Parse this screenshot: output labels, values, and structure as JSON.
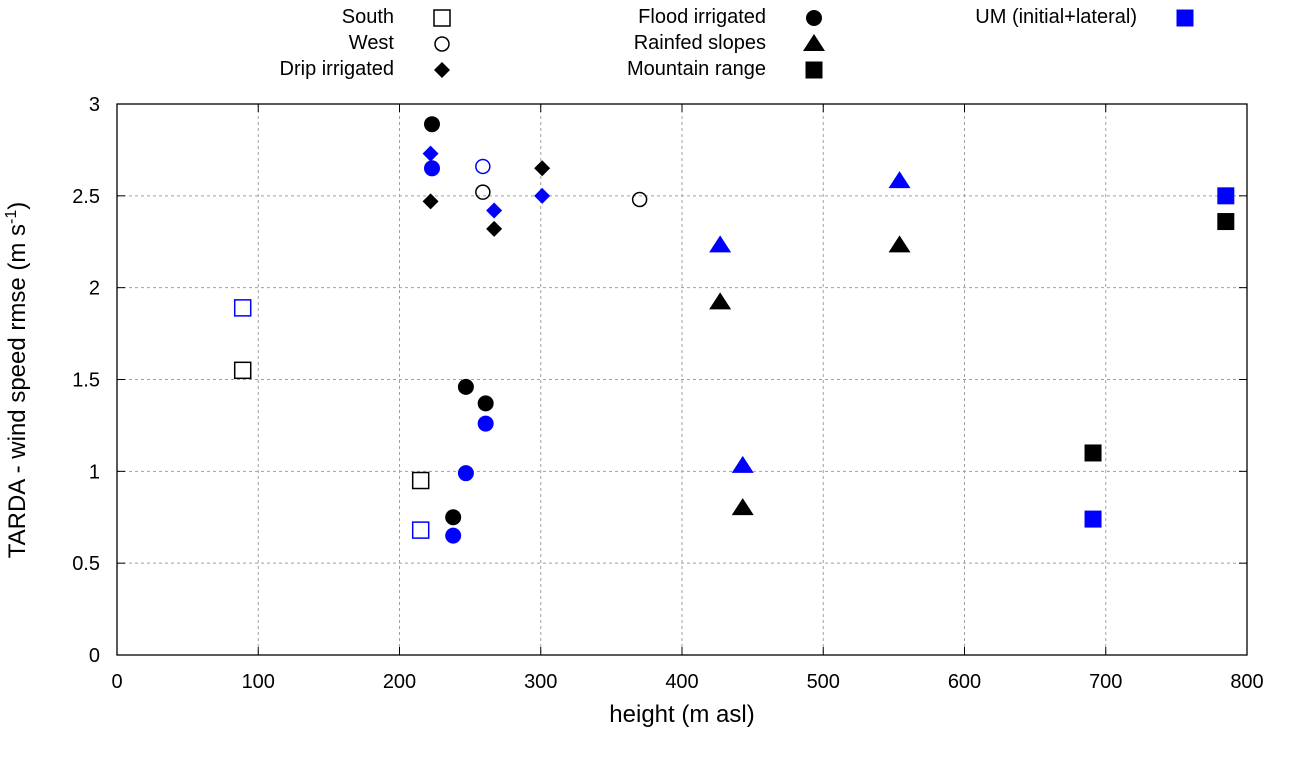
{
  "chart_data": {
    "type": "scatter",
    "title": "",
    "xlabel": "height (m asl)",
    "ylabel": "TARDA - wind speed rmse (m s",
    "ylabel_superscript": "-1",
    "ylabel_suffix": ")",
    "xlim": [
      0,
      800
    ],
    "ylim": [
      0,
      3
    ],
    "xticks": [
      0,
      100,
      200,
      300,
      400,
      500,
      600,
      700,
      800
    ],
    "yticks": [
      0,
      0.5,
      1,
      1.5,
      2,
      2.5,
      3
    ],
    "xtick_labels": [
      "0",
      "100",
      "200",
      "300",
      "400",
      "500",
      "600",
      "700",
      "800"
    ],
    "ytick_labels": [
      "0",
      "0.5",
      "1",
      "1.5",
      "2",
      "2.5",
      "3"
    ],
    "grid": true,
    "legend_position": "top",
    "colors": {
      "tarda": "#000000",
      "um": "#0000ff"
    },
    "legend": [
      {
        "label": "South",
        "marker": "open-square",
        "color": "#000000"
      },
      {
        "label": "West",
        "marker": "open-circle",
        "color": "#000000"
      },
      {
        "label": "Drip irrigated",
        "marker": "filled-diamond",
        "color": "#000000"
      },
      {
        "label": "Flood irrigated",
        "marker": "filled-circle",
        "color": "#000000"
      },
      {
        "label": "Rainfed slopes",
        "marker": "filled-triangle",
        "color": "#000000"
      },
      {
        "label": "Mountain range",
        "marker": "filled-square",
        "color": "#000000"
      },
      {
        "label": "UM (initial+lateral)",
        "marker": "filled-square",
        "color": "#0000ff"
      }
    ],
    "series": [
      {
        "name": "South",
        "marker": "open-square",
        "tarda": [
          {
            "x": 89,
            "y": 1.55
          },
          {
            "x": 215,
            "y": 0.95
          }
        ],
        "um": [
          {
            "x": 89,
            "y": 1.89
          },
          {
            "x": 215,
            "y": 0.68
          }
        ]
      },
      {
        "name": "West",
        "marker": "open-circle",
        "tarda": [
          {
            "x": 259,
            "y": 2.52
          },
          {
            "x": 370,
            "y": 2.48
          }
        ],
        "um": [
          {
            "x": 259,
            "y": 2.66
          }
        ]
      },
      {
        "name": "Drip irrigated",
        "marker": "filled-diamond",
        "tarda": [
          {
            "x": 222,
            "y": 2.47
          },
          {
            "x": 267,
            "y": 2.32
          },
          {
            "x": 301,
            "y": 2.65
          }
        ],
        "um": [
          {
            "x": 222,
            "y": 2.73
          },
          {
            "x": 267,
            "y": 2.42
          },
          {
            "x": 301,
            "y": 2.5
          }
        ]
      },
      {
        "name": "Flood irrigated",
        "marker": "filled-circle",
        "tarda": [
          {
            "x": 223,
            "y": 2.89
          },
          {
            "x": 247,
            "y": 1.46
          },
          {
            "x": 261,
            "y": 1.37
          },
          {
            "x": 238,
            "y": 0.75
          }
        ],
        "um": [
          {
            "x": 223,
            "y": 2.65
          },
          {
            "x": 247,
            "y": 0.99
          },
          {
            "x": 261,
            "y": 1.26
          },
          {
            "x": 238,
            "y": 0.65
          }
        ]
      },
      {
        "name": "Rainfed slopes",
        "marker": "filled-triangle",
        "tarda": [
          {
            "x": 427,
            "y": 1.92
          },
          {
            "x": 443,
            "y": 0.8
          },
          {
            "x": 554,
            "y": 2.23
          }
        ],
        "um": [
          {
            "x": 427,
            "y": 2.23
          },
          {
            "x": 443,
            "y": 1.03
          },
          {
            "x": 554,
            "y": 2.58
          }
        ]
      },
      {
        "name": "Mountain range",
        "marker": "filled-square",
        "tarda": [
          {
            "x": 691,
            "y": 1.1
          },
          {
            "x": 785,
            "y": 2.36
          }
        ],
        "um": [
          {
            "x": 691,
            "y": 0.74
          },
          {
            "x": 785,
            "y": 2.5
          }
        ]
      }
    ]
  }
}
